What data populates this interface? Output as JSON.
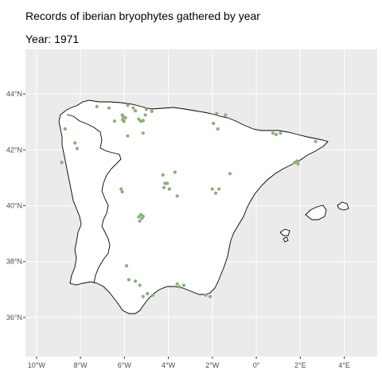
{
  "title": "Records of iberian bryophytes gathered by year",
  "subtitle": "Year: 1971",
  "colors": {
    "panel": "#ebebeb",
    "grid": "#ffffff",
    "land": "#ffffff",
    "coast": "#000000",
    "point": "#8aae7a"
  },
  "chart_data": {
    "type": "scatter",
    "map": "Iberian Peninsula",
    "x_axis": {
      "units": "longitude (degrees, negative = W)",
      "range": [
        -10.5,
        5.5
      ],
      "ticks": [
        -10,
        -8,
        -6,
        -4,
        -2,
        0,
        2,
        4
      ],
      "tick_labels": [
        "10°W",
        "8°W",
        "6°W",
        "4°W",
        "2°W",
        "0°",
        "2°E",
        "4°E"
      ]
    },
    "y_axis": {
      "units": "latitude (degrees N)",
      "range": [
        34.6,
        45.6
      ],
      "ticks": [
        36,
        38,
        40,
        42,
        44
      ],
      "tick_labels": [
        "36°N",
        "38°N",
        "40°N",
        "42°N",
        "44°N"
      ]
    },
    "grid": true,
    "points": [
      [
        -7.25,
        43.55
      ],
      [
        -6.7,
        43.5
      ],
      [
        -6.45,
        43.03
      ],
      [
        -6.1,
        43.25
      ],
      [
        -6.05,
        43.18
      ],
      [
        -6.08,
        43.08
      ],
      [
        -6.02,
        43.02
      ],
      [
        -5.95,
        43.15
      ],
      [
        -5.85,
        43.6
      ],
      [
        -5.6,
        43.5
      ],
      [
        -5.5,
        43.4
      ],
      [
        -5.35,
        43.1
      ],
      [
        -5.25,
        43.02
      ],
      [
        -5.15,
        43.05
      ],
      [
        -5.05,
        43.25
      ],
      [
        -5.0,
        43.45
      ],
      [
        -4.75,
        43.38
      ],
      [
        -5.85,
        42.5
      ],
      [
        -5.15,
        42.6
      ],
      [
        -8.7,
        42.75
      ],
      [
        -8.25,
        42.25
      ],
      [
        -8.15,
        42.05
      ],
      [
        -8.85,
        41.55
      ],
      [
        -1.95,
        42.95
      ],
      [
        -1.75,
        42.75
      ],
      [
        -1.4,
        43.25
      ],
      [
        -1.8,
        43.3
      ],
      [
        0.75,
        42.6
      ],
      [
        0.9,
        42.55
      ],
      [
        1.1,
        42.6
      ],
      [
        1.75,
        41.55
      ],
      [
        1.85,
        41.6
      ],
      [
        1.9,
        41.5
      ],
      [
        2.7,
        42.3
      ],
      [
        -4.25,
        41.1
      ],
      [
        -4.15,
        40.8
      ],
      [
        -4.2,
        40.65
      ],
      [
        -4.05,
        40.8
      ],
      [
        -3.95,
        40.6
      ],
      [
        -3.7,
        41.2
      ],
      [
        -3.6,
        40.35
      ],
      [
        -2.0,
        40.6
      ],
      [
        -1.85,
        40.45
      ],
      [
        -1.7,
        40.6
      ],
      [
        -1.2,
        41.15
      ],
      [
        -6.15,
        40.6
      ],
      [
        -6.1,
        40.5
      ],
      [
        -5.35,
        39.6
      ],
      [
        -5.25,
        39.68
      ],
      [
        -5.2,
        39.55
      ],
      [
        -5.15,
        39.62
      ],
      [
        -5.3,
        39.45
      ],
      [
        -5.9,
        37.85
      ],
      [
        -5.8,
        37.35
      ],
      [
        -5.5,
        37.3
      ],
      [
        -5.3,
        37.15
      ],
      [
        -4.95,
        36.85
      ],
      [
        -5.15,
        36.75
      ],
      [
        -4.7,
        36.8
      ],
      [
        -3.6,
        37.2
      ],
      [
        -3.3,
        37.15
      ],
      [
        -3.5,
        37.1
      ],
      [
        -2.3,
        36.8
      ],
      [
        -2.1,
        36.75
      ]
    ]
  }
}
